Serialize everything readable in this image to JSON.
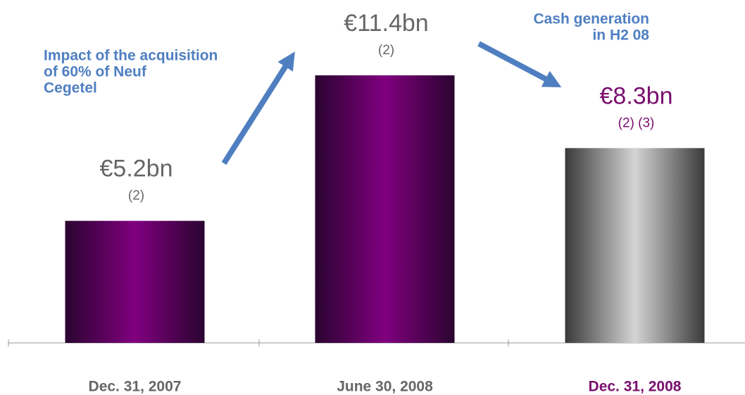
{
  "chart_data": {
    "type": "bar",
    "categories": [
      "Dec. 31, 2007",
      "June 30, 2008",
      "Dec. 31, 2008"
    ],
    "values": [
      5.2,
      11.4,
      8.3
    ],
    "value_labels": [
      "€5.2bn",
      "€11.4bn",
      "€8.3bn"
    ],
    "notes": [
      "(2)",
      "(2)",
      "(2) (3)"
    ],
    "colors": [
      [
        "#2a0430",
        "#80007f"
      ],
      [
        "#2a0430",
        "#80007f"
      ],
      [
        "#3a3a3a",
        "#d4d4d4"
      ]
    ],
    "label_colors": [
      "#666666",
      "#666666",
      "#7a0e6e"
    ],
    "annotations": [
      {
        "lines": [
          "Impact of the acquisition",
          "of 60% of Neuf",
          "Cegetel"
        ],
        "color": "#4f7fc0"
      },
      {
        "lines": [
          "Cash generation",
          "in H2 08"
        ],
        "color": "#4f7fc0"
      }
    ]
  }
}
